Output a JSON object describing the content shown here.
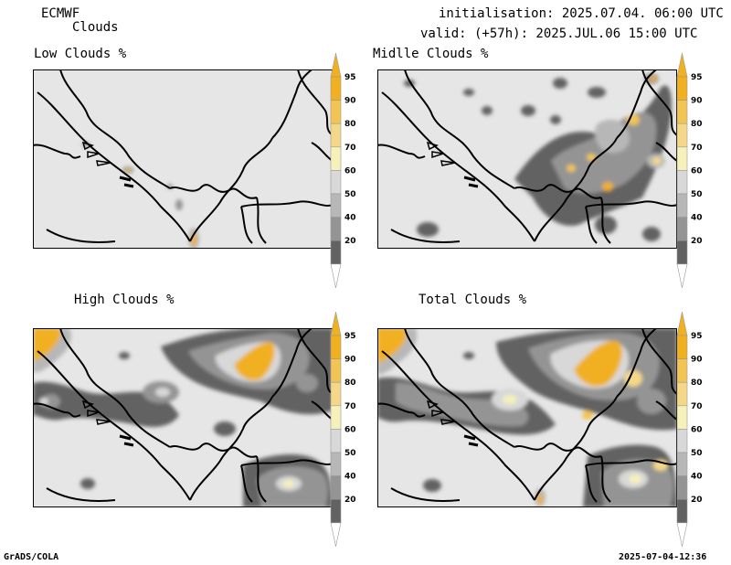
{
  "header": {
    "model": "ECMWF",
    "product": "Clouds",
    "init": "initialisation: 2025.07.04. 06:00 UTC",
    "valid": "valid: (+57h): 2025.JUL.06 15:00 UTC"
  },
  "panels": [
    {
      "id": "low",
      "title": "Low Clouds %"
    },
    {
      "id": "mid",
      "title": "Midlle Clouds %"
    },
    {
      "id": "high",
      "title": "High Clouds %"
    },
    {
      "id": "total",
      "title": "Total Clouds %"
    }
  ],
  "legend": {
    "levels": [
      "95",
      "90",
      "80",
      "70",
      "60",
      "50",
      "40",
      "20"
    ],
    "colors": [
      "#f0b020",
      "#f2c453",
      "#f4d888",
      "#f6f0bb",
      "#d8d8d8",
      "#b7b7b7",
      "#949494",
      "#626262"
    ]
  },
  "footer": {
    "left": "GrADS/COLA",
    "right": "2025-07-04-12:36"
  },
  "colors": {
    "background": "#e6e6e6",
    "border": "#000000"
  }
}
